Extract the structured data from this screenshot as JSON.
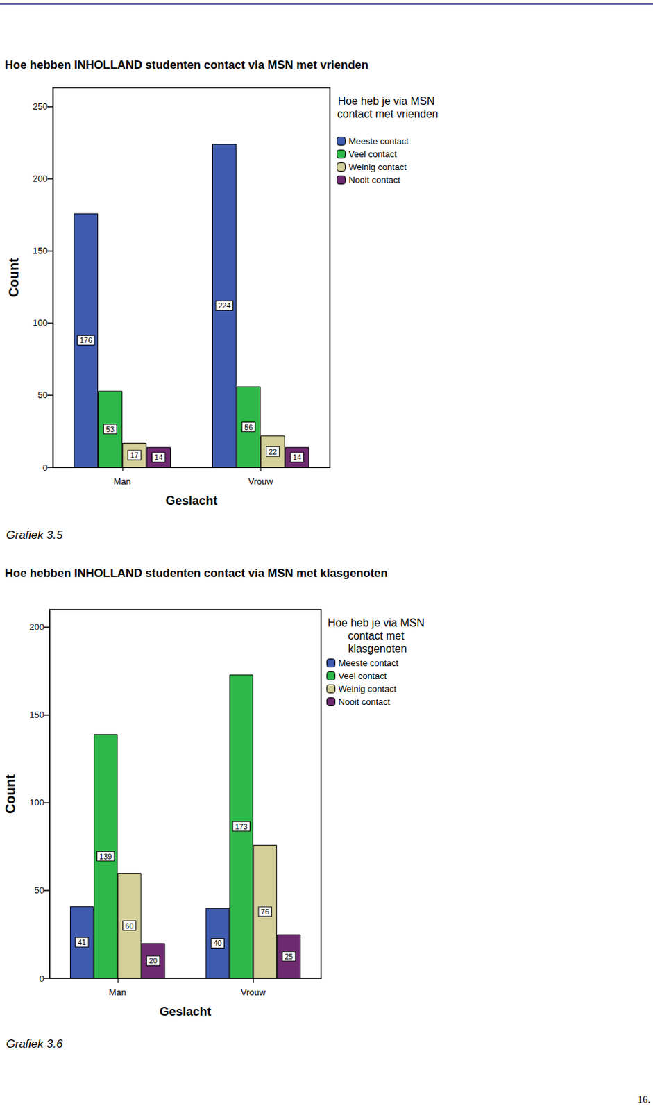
{
  "chart_data": [
    {
      "type": "bar",
      "title": "Hoe hebben INHOLLAND studenten contact via MSN met vrienden",
      "caption": "Grafiek 3.5",
      "x_label": "Geslacht",
      "y_label": "Count",
      "legend_title": "Hoe heb je via MSN contact met vrienden",
      "categories": [
        "Man",
        "Vrouw"
      ],
      "series": [
        {
          "name": "Meeste contact",
          "color": "#3f5bb0",
          "values": [
            176,
            224
          ]
        },
        {
          "name": "Veel contact",
          "color": "#2fb84a",
          "values": [
            53,
            56
          ]
        },
        {
          "name": "Weinig contact",
          "color": "#d4d09a",
          "values": [
            17,
            22
          ]
        },
        {
          "name": "Nooit contact",
          "color": "#6e2a70",
          "values": [
            14,
            14
          ]
        }
      ],
      "ylim": [
        0,
        263
      ],
      "yticks": [
        0,
        50,
        100,
        150,
        200,
        250
      ],
      "grid": false,
      "legend": "right",
      "data_labels": true
    },
    {
      "type": "bar",
      "title": "Hoe hebben INHOLLAND studenten contact via MSN met klasgenoten",
      "caption": "Grafiek 3.6",
      "x_label": "Geslacht",
      "y_label": "Count",
      "legend_title": "Hoe heb je via MSN contact met klasgenoten",
      "categories": [
        "Man",
        "Vrouw"
      ],
      "series": [
        {
          "name": "Meeste contact",
          "color": "#3f5bb0",
          "values": [
            41,
            40
          ]
        },
        {
          "name": "Veel contact",
          "color": "#2fb84a",
          "values": [
            139,
            173
          ]
        },
        {
          "name": "Weinig contact",
          "color": "#d4d09a",
          "values": [
            60,
            76
          ]
        },
        {
          "name": "Nooit contact",
          "color": "#6e2a70",
          "values": [
            20,
            25
          ]
        }
      ],
      "ylim": [
        0,
        210
      ],
      "yticks": [
        0,
        50,
        100,
        150,
        200
      ],
      "grid": false,
      "legend": "right",
      "data_labels": true
    }
  ],
  "page_number": "16."
}
